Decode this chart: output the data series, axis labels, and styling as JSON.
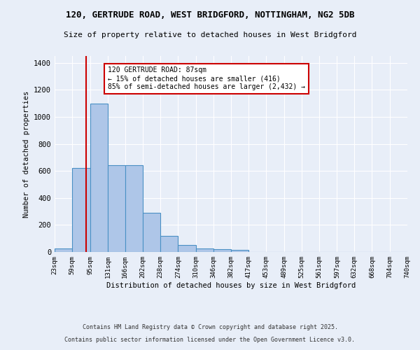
{
  "title1": "120, GERTRUDE ROAD, WEST BRIDGFORD, NOTTINGHAM, NG2 5DB",
  "title2": "Size of property relative to detached houses in West Bridgford",
  "xlabel": "Distribution of detached houses by size in West Bridgford",
  "ylabel": "Number of detached properties",
  "bin_edges": [
    23,
    59,
    95,
    131,
    166,
    202,
    238,
    274,
    310,
    346,
    382,
    417,
    453,
    489,
    525,
    561,
    597,
    632,
    668,
    704,
    740
  ],
  "bar_heights": [
    25,
    620,
    1100,
    640,
    640,
    290,
    120,
    50,
    25,
    20,
    15,
    0,
    0,
    0,
    0,
    0,
    0,
    0,
    0,
    0
  ],
  "bar_color": "#aec6e8",
  "bar_edge_color": "#4a90c4",
  "red_line_x": 87,
  "annotation_text": "120 GERTRUDE ROAD: 87sqm\n← 15% of detached houses are smaller (416)\n85% of semi-detached houses are larger (2,432) →",
  "annotation_box_color": "#ffffff",
  "annotation_text_color": "#000000",
  "annotation_border_color": "#cc0000",
  "ylim": [
    0,
    1450
  ],
  "yticks": [
    0,
    200,
    400,
    600,
    800,
    1000,
    1200,
    1400
  ],
  "bg_color": "#e8eef8",
  "grid_color": "#ffffff",
  "footer1": "Contains HM Land Registry data © Crown copyright and database right 2025.",
  "footer2": "Contains public sector information licensed under the Open Government Licence v3.0.",
  "tick_labels": [
    "23sqm",
    "59sqm",
    "95sqm",
    "131sqm",
    "166sqm",
    "202sqm",
    "238sqm",
    "274sqm",
    "310sqm",
    "346sqm",
    "382sqm",
    "417sqm",
    "453sqm",
    "489sqm",
    "525sqm",
    "561sqm",
    "597sqm",
    "632sqm",
    "668sqm",
    "704sqm",
    "740sqm"
  ]
}
